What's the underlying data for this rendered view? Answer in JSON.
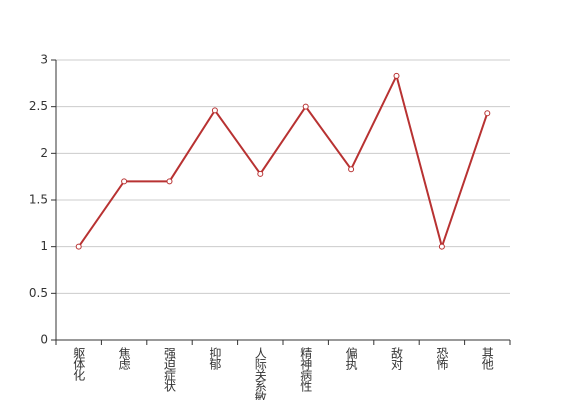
{
  "chart_data": {
    "type": "line",
    "categories": [
      "躯体化",
      "焦虑",
      "强迫症状",
      "抑郁",
      "人际关系敏感",
      "精神病性",
      "偏执",
      "敌对",
      "恐怖",
      "其他"
    ],
    "values": [
      1,
      1.7,
      1.7,
      2.46,
      1.78,
      2.5,
      1.83,
      2.83,
      1,
      2.43
    ],
    "color": "#b83232",
    "ylim": [
      0,
      3
    ],
    "yticks": [
      0,
      0.5,
      1,
      1.5,
      2,
      2.5,
      3
    ],
    "grid": true
  }
}
